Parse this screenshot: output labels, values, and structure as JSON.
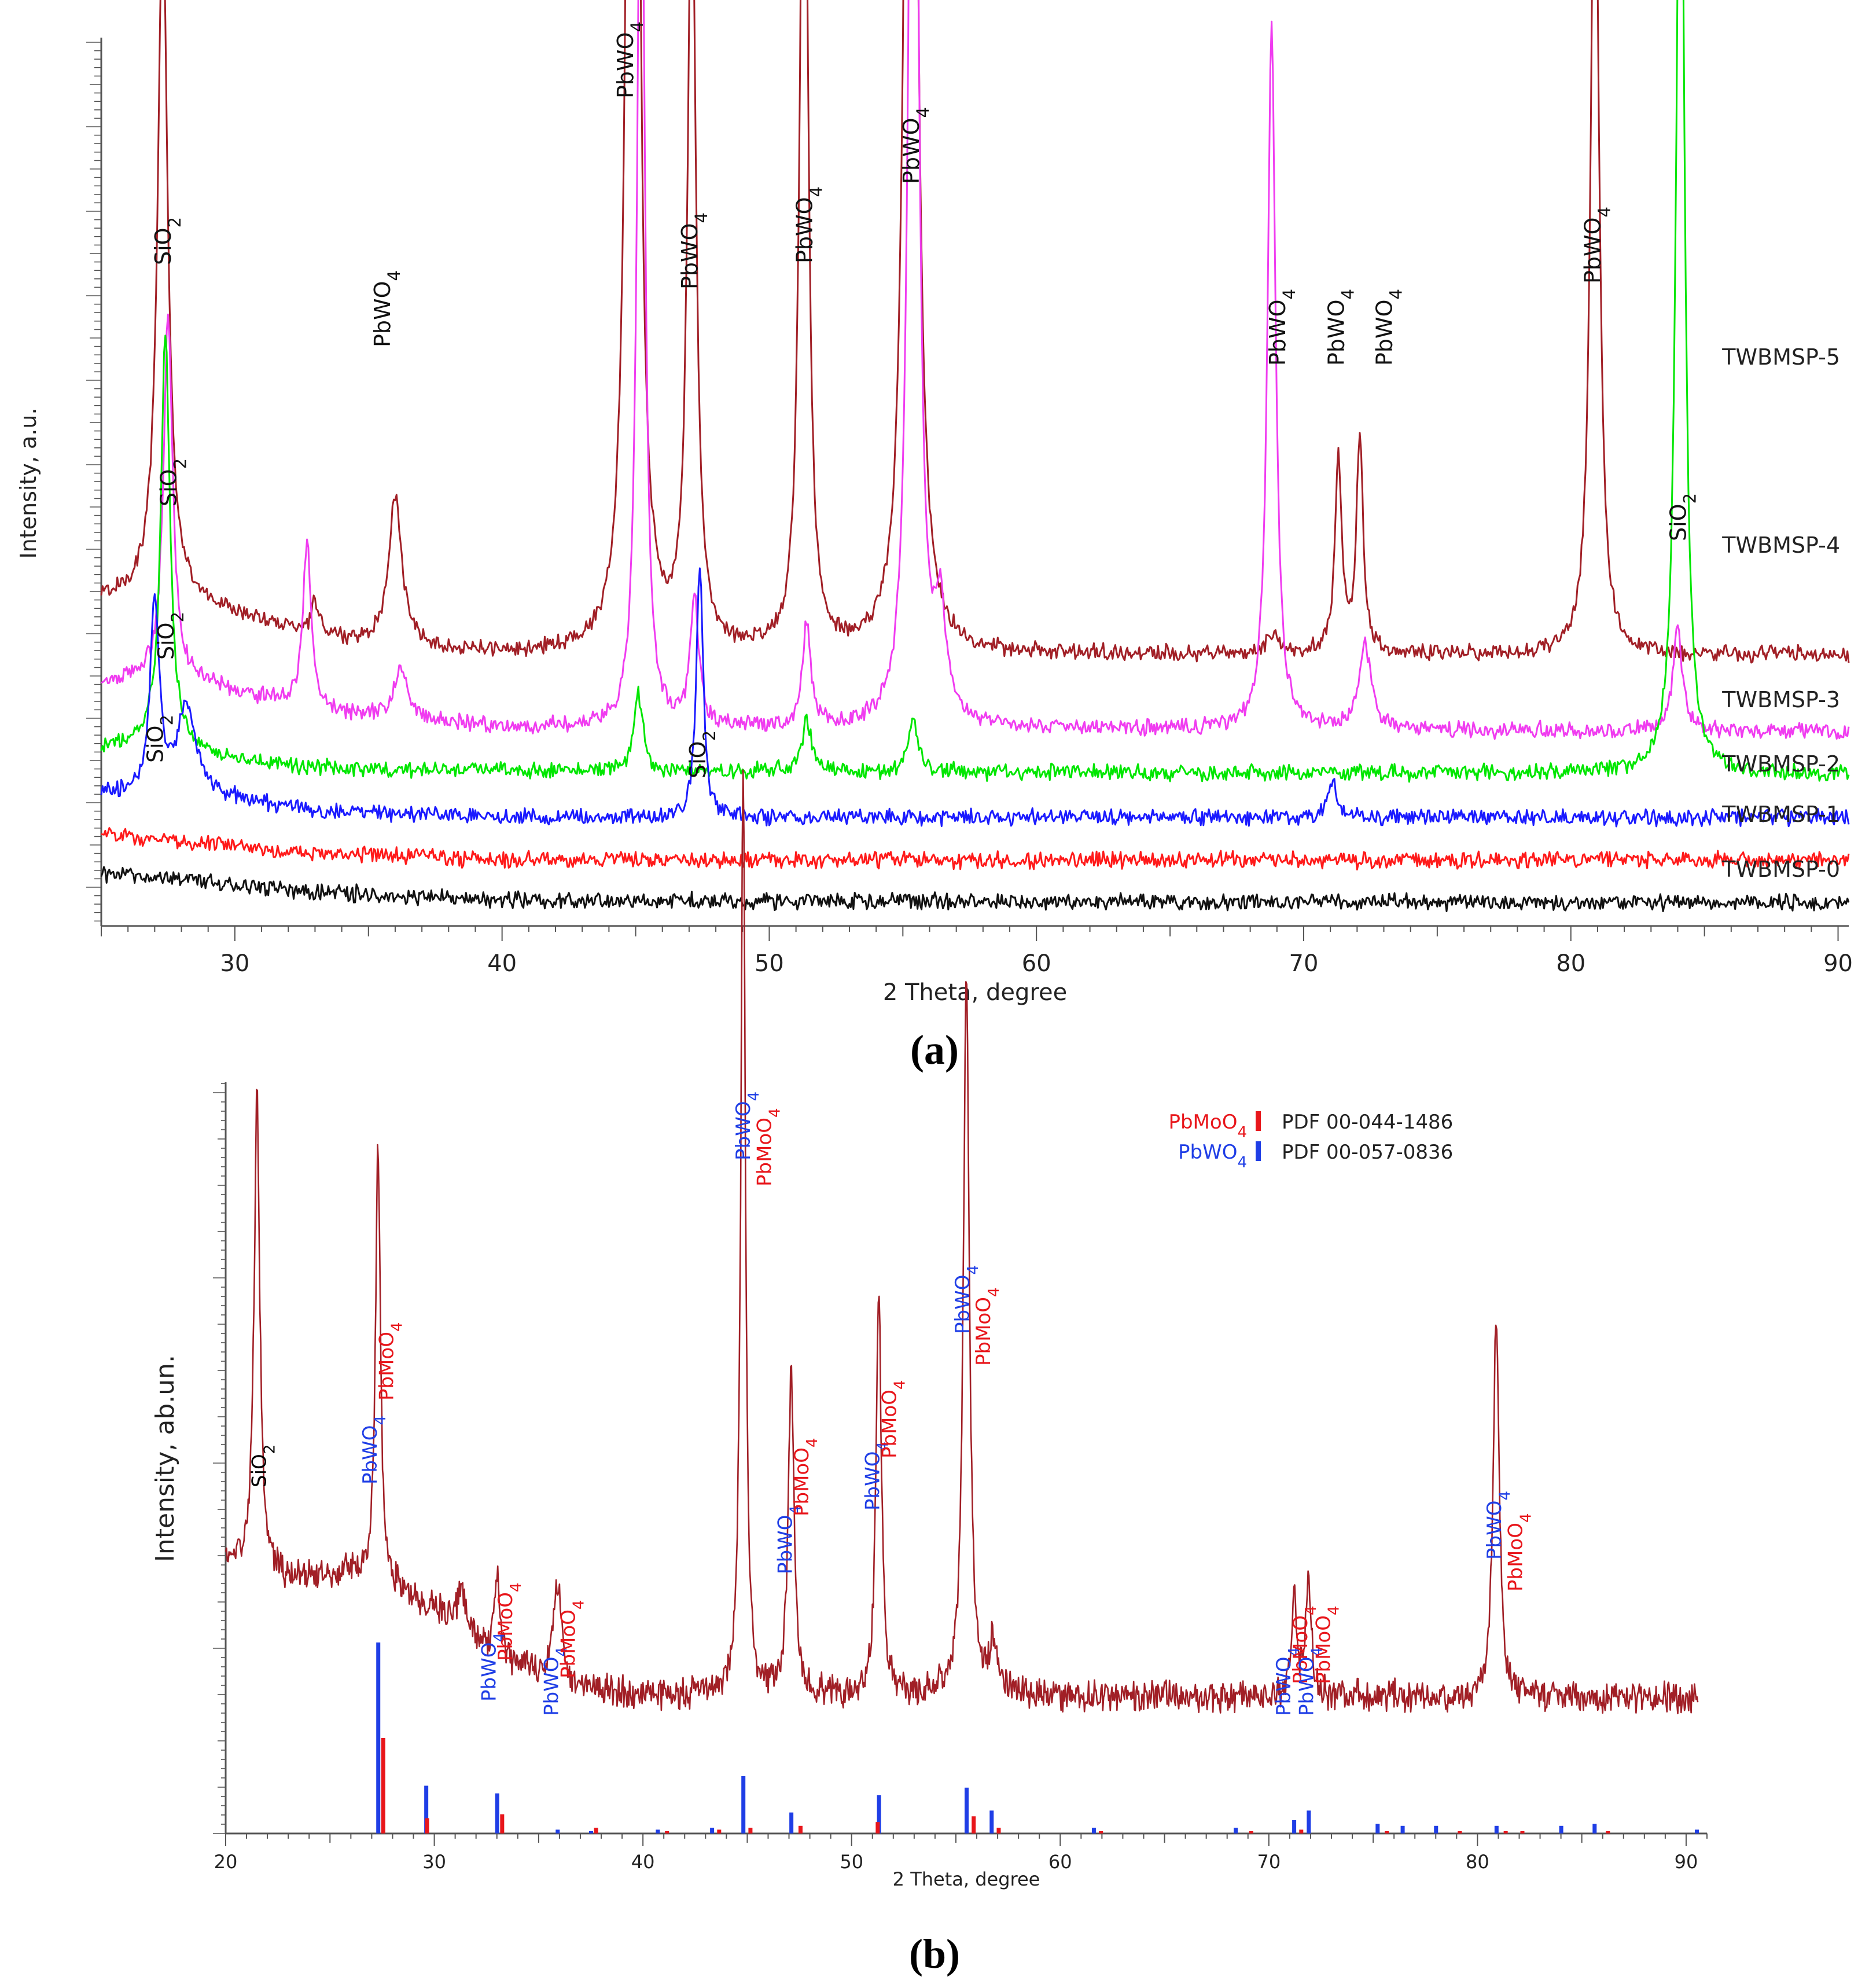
{
  "panel_labels": [
    "(a)",
    "(b)"
  ],
  "chart_data": [
    {
      "id": "a",
      "type": "line",
      "title": "",
      "xlabel": "2 Theta, degree",
      "ylabel": "Intensity, a.u.",
      "xlim": [
        25,
        90.4
      ],
      "x_ticks": [
        30,
        40,
        50,
        60,
        70,
        80,
        90
      ],
      "y_tick_labels": "none",
      "grid": false,
      "series": [
        {
          "name": "TWBMSP-5",
          "color": "#a11f26",
          "baseline": 0.58,
          "background": [
            [
              25,
              0.71
            ],
            [
              27.3,
              0.73
            ],
            [
              29,
              0.69
            ],
            [
              32,
              0.64
            ],
            [
              35,
              0.6
            ],
            [
              40,
              0.58
            ],
            [
              90,
              0.58
            ]
          ],
          "peaks": [
            [
              27.3,
              1.6,
              0.22
            ],
            [
              33.0,
              0.08,
              0.15
            ],
            [
              36.0,
              0.35,
              0.3
            ],
            [
              44.9,
              6.55,
              0.16
            ],
            [
              47.1,
              1.9,
              0.18
            ],
            [
              51.3,
              2.4,
              0.17
            ],
            [
              55.3,
              4.6,
              0.2
            ],
            [
              68.9,
              0.05,
              0.25
            ],
            [
              71.3,
              0.45,
              0.15
            ],
            [
              72.1,
              0.5,
              0.15
            ],
            [
              80.9,
              2.1,
              0.18
            ]
          ]
        },
        {
          "name": "TWBMSP-4",
          "color": "#f03cf0",
          "baseline": 0.4,
          "background": [
            [
              25,
              0.51
            ],
            [
              27.5,
              0.53
            ],
            [
              30,
              0.49
            ],
            [
              34,
              0.44
            ],
            [
              40,
              0.41
            ],
            [
              90,
              0.4
            ]
          ],
          "peaks": [
            [
              27.5,
              0.85,
              0.2
            ],
            [
              32.7,
              0.38,
              0.18
            ],
            [
              36.2,
              0.12,
              0.3
            ],
            [
              45.2,
              2.4,
              0.16
            ],
            [
              47.2,
              0.3,
              0.18
            ],
            [
              51.4,
              0.25,
              0.17
            ],
            [
              55.4,
              3.55,
              0.18
            ],
            [
              56.4,
              0.25,
              0.25
            ],
            [
              68.8,
              1.65,
              0.18
            ],
            [
              72.3,
              0.2,
              0.25
            ],
            [
              84.0,
              0.25,
              0.2
            ]
          ]
        },
        {
          "name": "TWBMSP-3",
          "color": "#00e600",
          "baseline": 0.3,
          "background": [
            [
              25,
              0.36
            ],
            [
              27.3,
              0.38
            ],
            [
              30,
              0.33
            ],
            [
              35,
              0.31
            ],
            [
              90,
              0.3
            ]
          ],
          "peaks": [
            [
              27.4,
              0.95,
              0.2
            ],
            [
              45.1,
              0.18,
              0.2
            ],
            [
              51.4,
              0.12,
              0.2
            ],
            [
              55.4,
              0.12,
              0.2
            ],
            [
              84.1,
              2.55,
              0.18
            ]
          ]
        },
        {
          "name": "TWBMSP-2",
          "color": "#1a1aff",
          "baseline": 0.2,
          "background": [
            [
              25,
              0.25
            ],
            [
              28,
              0.26
            ],
            [
              30,
              0.24
            ],
            [
              34,
              0.21
            ],
            [
              40,
              0.2
            ],
            [
              90,
              0.2
            ]
          ],
          "peaks": [
            [
              27.0,
              0.45,
              0.2
            ],
            [
              28.2,
              0.2,
              0.4
            ],
            [
              47.4,
              0.6,
              0.15
            ],
            [
              71.1,
              0.08,
              0.2
            ]
          ]
        },
        {
          "name": "TWBMSP-1",
          "color": "#ff1a1a",
          "baseline": 0.1,
          "background": [
            [
              25,
              0.16
            ],
            [
              29,
              0.14
            ],
            [
              32,
              0.12
            ],
            [
              40,
              0.1
            ],
            [
              90,
              0.1
            ]
          ],
          "peaks": []
        },
        {
          "name": "TWBMSP-0",
          "color": "#111111",
          "baseline": 0.0,
          "background": [
            [
              25,
              0.07
            ],
            [
              29,
              0.05
            ],
            [
              32,
              0.03
            ],
            [
              40,
              0.005
            ],
            [
              90,
              0.0
            ]
          ],
          "peaks": []
        }
      ],
      "annotations": [
        {
          "text": "SiO2",
          "x": 27.3,
          "series": "TWBMSP-5"
        },
        {
          "text": "PbWO4",
          "x": 35.5,
          "series": "TWBMSP-5"
        },
        {
          "text": "PbWO4",
          "x": 44.6,
          "series": "TWBMSP-5"
        },
        {
          "text": "PbWO4",
          "x": 47.0,
          "series": "TWBMSP-5"
        },
        {
          "text": "PbWO4",
          "x": 51.3,
          "series": "TWBMSP-5"
        },
        {
          "text": "PbWO4",
          "x": 55.3,
          "series": "TWBMSP-5"
        },
        {
          "text": "PbWO4",
          "x": 69.0,
          "series": "TWBMSP-5"
        },
        {
          "text": "PbWO4",
          "x": 71.2,
          "series": "TWBMSP-5"
        },
        {
          "text": "PbWO4",
          "x": 73.0,
          "series": "TWBMSP-5"
        },
        {
          "text": "PbWO4",
          "x": 80.8,
          "series": "TWBMSP-5"
        },
        {
          "text": "SiO2",
          "x": 27.5,
          "series": "TWBMSP-4"
        },
        {
          "text": "SiO2",
          "x": 84.0,
          "series": "TWBMSP-4"
        },
        {
          "text": "SiO2",
          "x": 27.4,
          "series": "TWBMSP-3"
        },
        {
          "text": "SiO2",
          "x": 27.0,
          "series": "TWBMSP-2"
        },
        {
          "text": "SiO2",
          "x": 47.3,
          "series": "TWBMSP-2"
        }
      ]
    },
    {
      "id": "b",
      "type": "line",
      "title": "",
      "xlabel": "2 Theta, degree",
      "ylabel": "Intensity, ab.un.",
      "xlim": [
        20,
        91
      ],
      "x_ticks": [
        20,
        30,
        40,
        50,
        60,
        70,
        80,
        90
      ],
      "y_tick_labels": "none",
      "grid": false,
      "legend": {
        "placement": "top-right",
        "entries": [
          {
            "name": "PbMoO4",
            "color": "#e8161b",
            "pdf": "PDF 00-044-1486"
          },
          {
            "name": "PbWO4",
            "color": "#1f3ee6",
            "pdf": "PDF 00-057-0836"
          }
        ]
      },
      "series": [
        {
          "name": "pattern",
          "color": "#a11f26",
          "background": [
            [
              20,
              0.9
            ],
            [
              21.6,
              0.86
            ],
            [
              23,
              0.83
            ],
            [
              26,
              0.85
            ],
            [
              27.5,
              0.82
            ],
            [
              30,
              0.7
            ],
            [
              33,
              0.52
            ],
            [
              36,
              0.4
            ],
            [
              40,
              0.36
            ],
            [
              91,
              0.35
            ]
          ],
          "peaks": [
            [
              21.5,
              1.95,
              0.16
            ],
            [
              27.3,
              1.75,
              0.14
            ],
            [
              31.3,
              0.15,
              0.3
            ],
            [
              33.0,
              0.3,
              0.15
            ],
            [
              35.9,
              0.4,
              0.25
            ],
            [
              44.8,
              3.75,
              0.13
            ],
            [
              47.1,
              1.3,
              0.16
            ],
            [
              51.3,
              1.65,
              0.15
            ],
            [
              55.5,
              2.9,
              0.17
            ],
            [
              56.8,
              0.2,
              0.25
            ],
            [
              71.2,
              0.4,
              0.15
            ],
            [
              71.9,
              0.48,
              0.15
            ],
            [
              80.9,
              1.55,
              0.17
            ]
          ]
        }
      ],
      "reference_sticks": {
        "PbWO4": [
          [
            27.3,
            1.0
          ],
          [
            29.6,
            0.25
          ],
          [
            33.0,
            0.21
          ],
          [
            35.9,
            0.02
          ],
          [
            37.5,
            0.01
          ],
          [
            40.7,
            0.02
          ],
          [
            43.3,
            0.03
          ],
          [
            44.8,
            0.3
          ],
          [
            47.1,
            0.11
          ],
          [
            51.3,
            0.2
          ],
          [
            55.5,
            0.24
          ],
          [
            56.7,
            0.12
          ],
          [
            61.6,
            0.03
          ],
          [
            68.4,
            0.03
          ],
          [
            71.2,
            0.07
          ],
          [
            71.9,
            0.12
          ],
          [
            75.2,
            0.05
          ],
          [
            76.4,
            0.04
          ],
          [
            78.0,
            0.04
          ],
          [
            80.9,
            0.04
          ],
          [
            84.0,
            0.04
          ],
          [
            85.6,
            0.05
          ],
          [
            90.5,
            0.02
          ]
        ],
        "PbMoO4": [
          [
            27.4,
            0.5
          ],
          [
            29.5,
            0.08
          ],
          [
            33.1,
            0.1
          ],
          [
            37.6,
            0.03
          ],
          [
            41.0,
            0.01
          ],
          [
            43.5,
            0.02
          ],
          [
            45.0,
            0.03
          ],
          [
            47.4,
            0.04
          ],
          [
            51.1,
            0.06
          ],
          [
            55.7,
            0.09
          ],
          [
            56.9,
            0.03
          ],
          [
            61.8,
            0.01
          ],
          [
            69.0,
            0.01
          ],
          [
            71.4,
            0.02
          ],
          [
            75.5,
            0.01
          ],
          [
            79.0,
            0.01
          ],
          [
            81.2,
            0.01
          ],
          [
            82.0,
            0.01
          ],
          [
            86.1,
            0.01
          ]
        ]
      },
      "annotations": [
        {
          "text": "SiO2",
          "x": 21.6,
          "color": "#000000"
        },
        {
          "text": "PbWO4",
          "x": 26.9,
          "color": "#1f3ee6"
        },
        {
          "text": "PbMoO4",
          "x": 27.7,
          "color": "#e8161b"
        },
        {
          "text": "PbWO4",
          "x": 32.6,
          "color": "#1f3ee6"
        },
        {
          "text": "PbMoO4",
          "x": 33.4,
          "color": "#e8161b"
        },
        {
          "text": "PbWO4",
          "x": 35.6,
          "color": "#1f3ee6"
        },
        {
          "text": "PbMoO4",
          "x": 36.4,
          "color": "#e8161b"
        },
        {
          "text": "PbWO4",
          "x": 44.8,
          "color": "#1f3ee6"
        },
        {
          "text": "PbMoO4",
          "x": 45.8,
          "color": "#e8161b"
        },
        {
          "text": "PbWO4",
          "x": 46.8,
          "color": "#1f3ee6"
        },
        {
          "text": "PbMoO4",
          "x": 47.6,
          "color": "#e8161b"
        },
        {
          "text": "PbWO4",
          "x": 51.0,
          "color": "#1f3ee6"
        },
        {
          "text": "PbMoO4",
          "x": 51.8,
          "color": "#e8161b"
        },
        {
          "text": "PbWO4",
          "x": 55.3,
          "color": "#1f3ee6"
        },
        {
          "text": "PbMoO4",
          "x": 56.3,
          "color": "#e8161b"
        },
        {
          "text": "PbWO4",
          "x": 70.7,
          "color": "#1f3ee6"
        },
        {
          "text": "PbMoO4",
          "x": 71.5,
          "color": "#e8161b"
        },
        {
          "text": "PbWO4",
          "x": 71.8,
          "color": "#1f3ee6"
        },
        {
          "text": "PbMoO4",
          "x": 72.6,
          "color": "#e8161b"
        },
        {
          "text": "PbWO4",
          "x": 80.8,
          "color": "#1f3ee6"
        },
        {
          "text": "PbMoO4",
          "x": 81.8,
          "color": "#e8161b"
        }
      ]
    }
  ]
}
